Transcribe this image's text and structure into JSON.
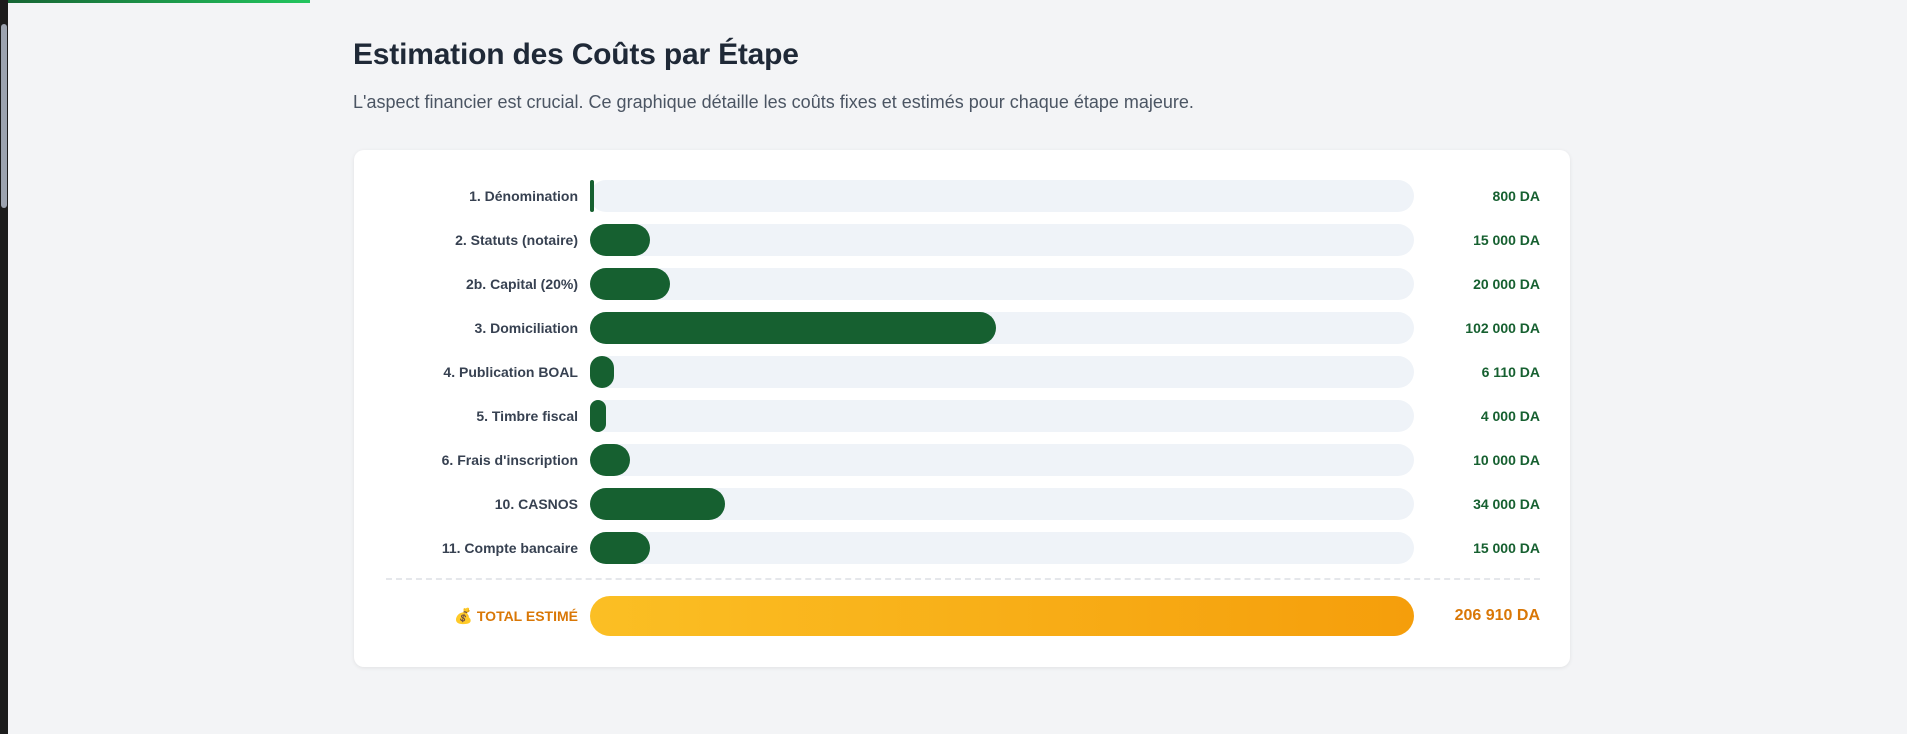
{
  "section": {
    "title": "Estimation des Coûts par Étape",
    "subtitle": "L'aspect financier est crucial. Ce graphique détaille les coûts fixes et estimés pour chaque étape majeure."
  },
  "colors": {
    "bar": "#166030",
    "track": "#eff3f8",
    "total_gradient": [
      "#fbbf24",
      "#f59e0b"
    ],
    "total_text": "#d97706",
    "value_text": "#166030"
  },
  "chart_data": {
    "type": "bar",
    "orientation": "horizontal",
    "categories": [
      "1. Dénomination",
      "2. Statuts (notaire)",
      "2b. Capital (20%)",
      "3. Domiciliation",
      "4. Publication BOAL",
      "5. Timbre fiscal",
      "6. Frais d'inscription",
      "10. CASNOS",
      "11. Compte bancaire"
    ],
    "values": [
      800,
      15000,
      20000,
      102000,
      6110,
      4000,
      10000,
      34000,
      15000
    ],
    "value_labels": [
      "800 DA",
      "15 000 DA",
      "20 000 DA",
      "102 000 DA",
      "6 110 DA",
      "4 000 DA",
      "10 000 DA",
      "34 000 DA",
      "15 000 DA"
    ],
    "xlim": [
      0,
      206910
    ],
    "total": {
      "icon": "money-bag-icon",
      "label": "TOTAL ESTIMÉ",
      "value": 206910,
      "value_label": "206 910 DA"
    }
  }
}
